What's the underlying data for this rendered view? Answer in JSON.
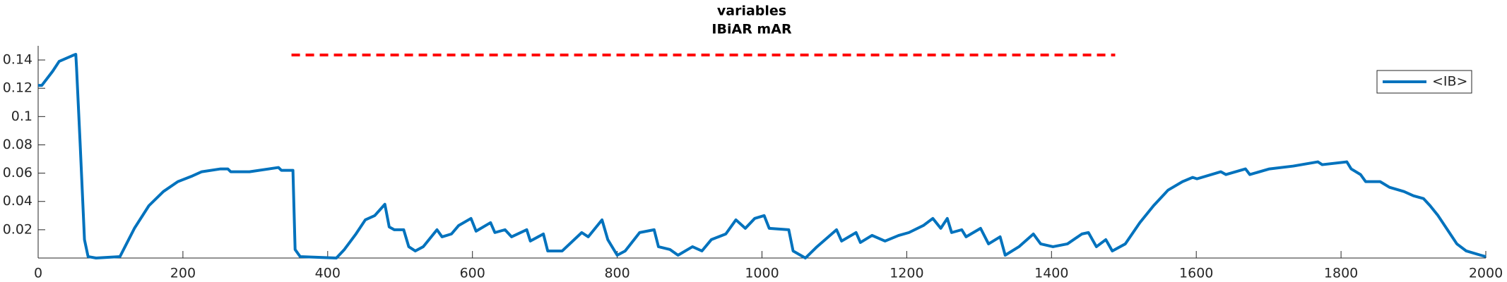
{
  "chart_data": {
    "type": "line",
    "title": "variables",
    "subtitle": "IBiAR mAR",
    "xlim": [
      0,
      2000
    ],
    "xticks": [
      0,
      200,
      400,
      600,
      800,
      1000,
      1200,
      1400,
      1600,
      1800,
      2000
    ],
    "ylim": [
      0,
      0.15
    ],
    "yticks": [
      0.02,
      0.04,
      0.06,
      0.08,
      0.1,
      0.12,
      0.14
    ],
    "legend": "northeast",
    "series": [
      {
        "name": "<IB>",
        "color": "#0072bd",
        "linestyle": "solid",
        "x": [
          0,
          5,
          20,
          29,
          47,
          52,
          53,
          58,
          64,
          69,
          80,
          113,
          120,
          133,
          153,
          173,
          193,
          213,
          226,
          252,
          262,
          266,
          292,
          332,
          336,
          352,
          355,
          362,
          412,
          423,
          439,
          452,
          465,
          479,
          485,
          492,
          505,
          512,
          521,
          532,
          551,
          558,
          571,
          581,
          598,
          605,
          625,
          631,
          645,
          654,
          675,
          680,
          698,
          704,
          724,
          751,
          760,
          779,
          787,
          800,
          811,
          831,
          851,
          857,
          873,
          884,
          904,
          917,
          930,
          950,
          964,
          977,
          990,
          1003,
          1010,
          1037,
          1043,
          1060,
          1076,
          1103,
          1110,
          1130,
          1136,
          1152,
          1170,
          1189,
          1203,
          1223,
          1236,
          1247,
          1256,
          1262,
          1276,
          1282,
          1302,
          1313,
          1329,
          1336,
          1355,
          1375,
          1385,
          1402,
          1422,
          1442,
          1451,
          1462,
          1475,
          1484,
          1502,
          1522,
          1541,
          1561,
          1581,
          1595,
          1601,
          1634,
          1641,
          1668,
          1674,
          1701,
          1734,
          1768,
          1774,
          1808,
          1814,
          1827,
          1834,
          1854,
          1867,
          1887,
          1900,
          1914,
          1923,
          1934,
          1947,
          1960,
          1973,
          1993,
          2000
        ],
        "values": [
          0.122,
          0.122,
          0.132,
          0.139,
          0.143,
          0.144,
          0.135,
          0.081,
          0.013,
          0.001,
          0,
          0.001,
          0.008,
          0.021,
          0.037,
          0.047,
          0.054,
          0.058,
          0.061,
          0.063,
          0.063,
          0.061,
          0.061,
          0.064,
          0.062,
          0.062,
          0.006,
          0.001,
          0,
          0.006,
          0.017,
          0.027,
          0.03,
          0.038,
          0.022,
          0.02,
          0.02,
          0.008,
          0.005,
          0.008,
          0.02,
          0.015,
          0.017,
          0.023,
          0.028,
          0.019,
          0.025,
          0.018,
          0.02,
          0.015,
          0.02,
          0.012,
          0.017,
          0.005,
          0.005,
          0.018,
          0.015,
          0.027,
          0.013,
          0.002,
          0.005,
          0.018,
          0.02,
          0.008,
          0.006,
          0.002,
          0.008,
          0.005,
          0.013,
          0.017,
          0.027,
          0.021,
          0.028,
          0.03,
          0.021,
          0.02,
          0.005,
          0,
          0.008,
          0.02,
          0.012,
          0.018,
          0.011,
          0.016,
          0.012,
          0.016,
          0.018,
          0.023,
          0.028,
          0.021,
          0.028,
          0.018,
          0.02,
          0.015,
          0.021,
          0.01,
          0.015,
          0.002,
          0.008,
          0.017,
          0.01,
          0.008,
          0.01,
          0.017,
          0.018,
          0.008,
          0.013,
          0.005,
          0.01,
          0.025,
          0.037,
          0.048,
          0.054,
          0.057,
          0.056,
          0.061,
          0.059,
          0.063,
          0.059,
          0.063,
          0.065,
          0.068,
          0.066,
          0.068,
          0.063,
          0.059,
          0.054,
          0.054,
          0.05,
          0.047,
          0.044,
          0.042,
          0.037,
          0.03,
          0.02,
          0.01,
          0.005,
          0.002,
          0.001
        ]
      },
      {
        "color": "#ff0000",
        "linestyle": "dashed",
        "x": [
          350,
          1488
        ],
        "values": [
          0.1435,
          0.1435
        ]
      }
    ]
  }
}
